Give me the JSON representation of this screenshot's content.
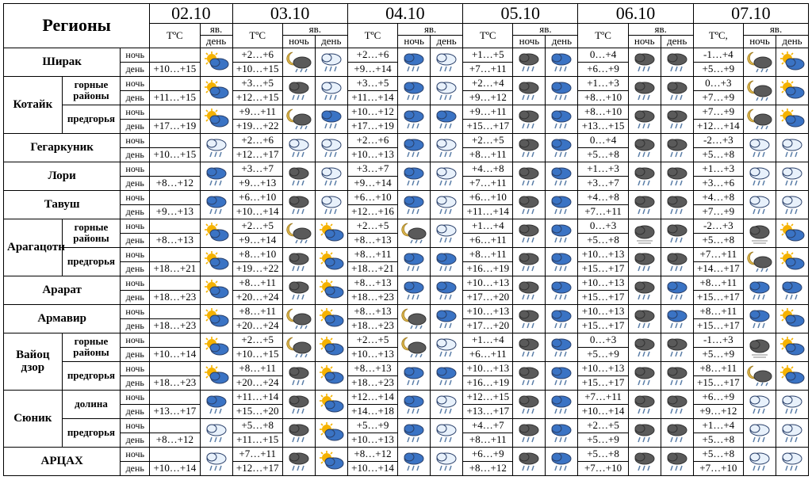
{
  "labels": {
    "regions": "Регионы",
    "tc": "TºС",
    "tc2": "TºС,",
    "yav": "яв.",
    "night": "ночь",
    "day": "день"
  },
  "dates": [
    "02.10",
    "03.10",
    "04.10",
    "05.10",
    "06.10",
    "07.10"
  ],
  "colors": {
    "sun": "#f5b200",
    "cloud_white": "#e8f1fb",
    "cloud_blue": "#3a73c4",
    "cloud_gray": "#5a5a5a",
    "outline": "#2a406a",
    "rain": "#5a7ea8",
    "moon": "#d9b34a"
  },
  "regions": [
    {
      "name": "Ширак",
      "subs": null
    },
    {
      "name": "Котайк",
      "subs": [
        "горные районы",
        "предгорья"
      ]
    },
    {
      "name": "Гегаркуник",
      "subs": null
    },
    {
      "name": "Лори",
      "subs": null
    },
    {
      "name": "Тавуш",
      "subs": null
    },
    {
      "name": "Арагацотн",
      "subs": [
        "горные районы",
        "предгорья"
      ]
    },
    {
      "name": "Арарат",
      "subs": null
    },
    {
      "name": "Армавир",
      "subs": null
    },
    {
      "name": "Вайоц дзор",
      "subs": [
        "горные районы",
        "предгорья"
      ]
    },
    {
      "name": "Сюник",
      "subs": [
        "долина",
        "предгорья"
      ]
    },
    {
      "name": "АРЦАХ",
      "subs": null
    }
  ],
  "rows": [
    {
      "t": [
        "+10…+15",
        "+2…+6",
        "+10…+15",
        "+2…+6",
        "+9…+14",
        "+1…+5",
        "+7…+11",
        "0…+4",
        "+6…+9",
        "-1…+4",
        "+5…+9"
      ],
      "i": [
        "sc",
        "mr",
        "rr",
        "br",
        "rr",
        "gr",
        "br",
        "gr",
        "gr",
        "mr",
        "sc"
      ]
    },
    {
      "t": [
        "+11…+15",
        "+3…+5",
        "+12…+15",
        "+3…+5",
        "+11…+14",
        "+2…+4",
        "+9…+12",
        "+1…+3",
        "+8…+10",
        "0…+3",
        "+7…+9"
      ],
      "i": [
        "sc",
        "gr",
        "rr",
        "br",
        "rr",
        "gr",
        "br",
        "gr",
        "gr",
        "mr",
        "sc"
      ]
    },
    {
      "t": [
        "+17…+19",
        "+9…+11",
        "+19…+22",
        "+10…+12",
        "+17…+19",
        "+9…+11",
        "+15…+17",
        "+8…+10",
        "+13…+15",
        "+7…+9",
        "+12…+14"
      ],
      "i": [
        "sc",
        "mr",
        "br",
        "br",
        "br",
        "gr",
        "br",
        "gr",
        "gr",
        "mr",
        "sc"
      ]
    },
    {
      "t": [
        "+10…+15",
        "+2…+6",
        "+12…+17",
        "+2…+6",
        "+10…+13",
        "+2…+5",
        "+8…+11",
        "0…+4",
        "+5…+8",
        "-2…+3",
        "+5…+8"
      ],
      "i": [
        "rr",
        "rr",
        "rr",
        "br",
        "rr",
        "gr",
        "br",
        "gr",
        "gr",
        "rr",
        "rr"
      ]
    },
    {
      "t": [
        "+8…+12",
        "+3…+7",
        "+9…+13",
        "+3…+7",
        "+9…+14",
        "+4…+8",
        "+7…+11",
        "+1…+3",
        "+3…+7",
        "+1…+3",
        "+3…+6"
      ],
      "i": [
        "br",
        "gr",
        "rr",
        "br",
        "rr",
        "gr",
        "br",
        "gr",
        "gr",
        "rr",
        "rr"
      ]
    },
    {
      "t": [
        "+9…+13",
        "+6…+10",
        "+10…+14",
        "+6…+10",
        "+12…+16",
        "+6…+10",
        "+11…+14",
        "+4…+8",
        "+7…+11",
        "+4…+8",
        "+7…+9"
      ],
      "i": [
        "br",
        "gr",
        "rr",
        "br",
        "rr",
        "gr",
        "br",
        "gr",
        "gr",
        "rr",
        "rr"
      ]
    },
    {
      "t": [
        "+8…+13",
        "+2…+5",
        "+9…+14",
        "+2…+5",
        "+8…+13",
        "+1…+4",
        "+6…+11",
        "0…+3",
        "+5…+8",
        "-2…+3",
        "+5…+8"
      ],
      "i": [
        "sc",
        "mr",
        "sc",
        "mr",
        "rr",
        "gr",
        "br",
        "gf",
        "gr",
        "gf",
        "sc"
      ]
    },
    {
      "t": [
        "+18…+21",
        "+8…+10",
        "+19…+22",
        "+8…+11",
        "+18…+21",
        "+8…+11",
        "+16…+19",
        "+10…+13",
        "+15…+17",
        "+7…+11",
        "+14…+17"
      ],
      "i": [
        "sc",
        "gr",
        "sc",
        "br",
        "br",
        "gr",
        "br",
        "gr",
        "gr",
        "mr",
        "sc"
      ]
    },
    {
      "t": [
        "+18…+23",
        "+8…+11",
        "+20…+24",
        "+8…+13",
        "+18…+23",
        "+10…+13",
        "+17…+20",
        "+10…+13",
        "+15…+17",
        "+8…+11",
        "+15…+17"
      ],
      "i": [
        "sc",
        "gr",
        "sc",
        "br",
        "br",
        "gr",
        "br",
        "gr",
        "br",
        "br",
        "br"
      ]
    },
    {
      "t": [
        "+18…+23",
        "+8…+11",
        "+20…+24",
        "+8…+13",
        "+18…+23",
        "+10…+13",
        "+17…+20",
        "+10…+13",
        "+15…+17",
        "+8…+11",
        "+15…+17"
      ],
      "i": [
        "sc",
        "mr",
        "sc",
        "mr",
        "br",
        "gr",
        "br",
        "gr",
        "br",
        "br",
        "sc"
      ]
    },
    {
      "t": [
        "+10…+14",
        "+2…+5",
        "+10…+15",
        "+2…+5",
        "+10…+13",
        "+1…+4",
        "+6…+11",
        "0…+3",
        "+5…+9",
        "-1…+3",
        "+5…+9"
      ],
      "i": [
        "sc",
        "mr",
        "sc",
        "mr",
        "rr",
        "gr",
        "br",
        "gr",
        "gr",
        "gf",
        "sc"
      ]
    },
    {
      "t": [
        "+18…+23",
        "+8…+11",
        "+20…+24",
        "+8…+13",
        "+18…+23",
        "+10…+13",
        "+16…+19",
        "+10…+13",
        "+15…+17",
        "+8…+11",
        "+15…+17"
      ],
      "i": [
        "sc",
        "gr",
        "sc",
        "br",
        "br",
        "gr",
        "br",
        "gr",
        "gr",
        "mr",
        "sc"
      ]
    },
    {
      "t": [
        "+13…+17",
        "+11…+14",
        "+15…+20",
        "+12…+14",
        "+14…+18",
        "+12…+15",
        "+13…+17",
        "+7…+11",
        "+10…+14",
        "+6…+9",
        "+9…+12"
      ],
      "i": [
        "br",
        "gr",
        "sc",
        "br",
        "rr",
        "gr",
        "br",
        "gr",
        "gr",
        "rr",
        "rr"
      ]
    },
    {
      "t": [
        "+8…+12",
        "+5…+8",
        "+11…+15",
        "+5…+9",
        "+10…+13",
        "+4…+7",
        "+8…+11",
        "+2…+5",
        "+5…+9",
        "+1…+4",
        "+5…+8"
      ],
      "i": [
        "rr",
        "gr",
        "sc",
        "br",
        "rr",
        "gr",
        "br",
        "gr",
        "gr",
        "rr",
        "rr"
      ]
    },
    {
      "t": [
        "+10…+14",
        "+7…+11",
        "+12…+17",
        "+8…+12",
        "+10…+14",
        "+6…+9",
        "+8…+12",
        "+5…+8",
        "+7…+10",
        "+5…+8",
        "+7…+10"
      ],
      "i": [
        "rr",
        "gr",
        "sc",
        "br",
        "rr",
        "gr",
        "br",
        "gr",
        "gr",
        "rr",
        "rr"
      ]
    }
  ]
}
